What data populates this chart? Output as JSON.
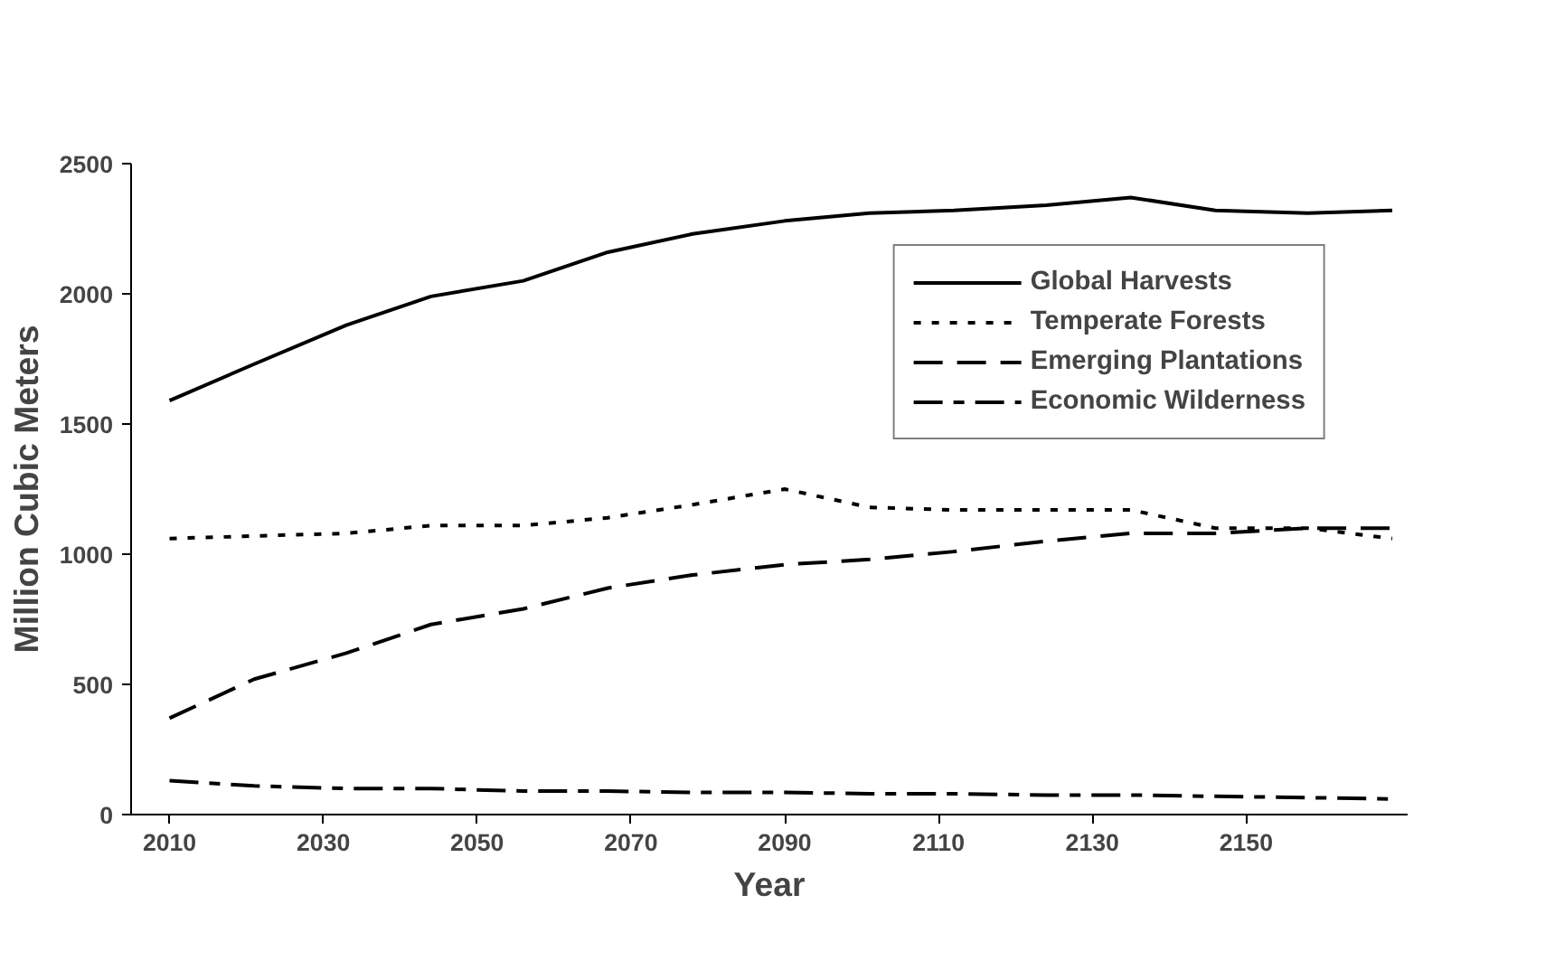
{
  "chart_data": {
    "type": "line",
    "xlabel": "Year",
    "ylabel": "Million Cubic Meters",
    "x": [
      2010,
      2021,
      2033,
      2044,
      2056,
      2067,
      2078,
      2090,
      2101,
      2112,
      2124,
      2135,
      2146,
      2158,
      2169
    ],
    "series": [
      {
        "name": "Global Harvests",
        "color": "#000000",
        "line_style": "solid",
        "values": [
          1590,
          1730,
          1880,
          1990,
          2050,
          2160,
          2230,
          2280,
          2310,
          2320,
          2340,
          2370,
          2320,
          2310,
          2320
        ]
      },
      {
        "name": "Temperate Forests",
        "color": "#000000",
        "line_style": "dotted",
        "values": [
          1060,
          1070,
          1080,
          1110,
          1110,
          1140,
          1190,
          1250,
          1180,
          1170,
          1170,
          1170,
          1100,
          1100,
          1060
        ]
      },
      {
        "name": "Emerging Plantations",
        "color": "#000000",
        "line_style": "dashed",
        "values": [
          370,
          520,
          620,
          730,
          790,
          870,
          920,
          960,
          980,
          1010,
          1050,
          1080,
          1080,
          1100,
          1100
        ]
      },
      {
        "name": "Economic Wilderness",
        "color": "#000000",
        "line_style": "dashdot",
        "values": [
          130,
          110,
          100,
          100,
          90,
          90,
          85,
          85,
          80,
          80,
          75,
          75,
          70,
          65,
          60
        ]
      }
    ],
    "xlim": [
      2005,
      2171
    ],
    "xticks": [
      2010,
      2030,
      2050,
      2070,
      2090,
      2110,
      2130,
      2150
    ],
    "ylim": [
      0,
      2500
    ],
    "yticks": [
      0,
      500,
      1000,
      1500,
      2000,
      2500
    ],
    "grid": false,
    "legend": "top right",
    "marker": "none"
  }
}
